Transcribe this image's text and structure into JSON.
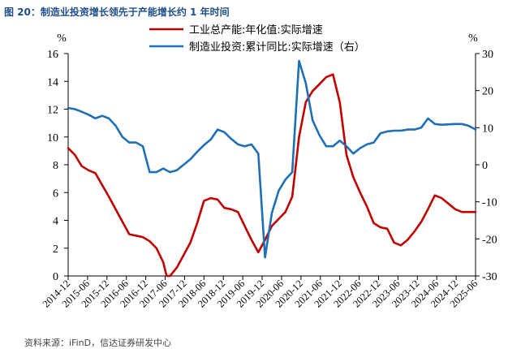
{
  "title": "图 20：制造业投资增长领先于产能增长约 1 年时间",
  "source": "资料来源：iFinD，信达证券研发中心",
  "chart_data": {
    "type": "line",
    "left_axis": {
      "unit": "%",
      "ylim": [
        0,
        16
      ],
      "ticks": [
        0,
        2,
        4,
        6,
        8,
        10,
        12,
        14,
        16
      ]
    },
    "right_axis": {
      "unit": "%",
      "ylim": [
        -30,
        30
      ],
      "ticks": [
        -30,
        -20,
        -10,
        0,
        10,
        20,
        30
      ]
    },
    "x_ticks": [
      "2014-12",
      "2015-06",
      "2015-12",
      "2016-06",
      "2016-12",
      "2017-06",
      "2017-12",
      "2018-06",
      "2018-12",
      "2019-06",
      "2019-12",
      "2020-06",
      "2020-12",
      "2021-06",
      "2021-12",
      "2022-06",
      "2022-12",
      "2023-06",
      "2023-12",
      "2024-06",
      "2024-12",
      "2025-06"
    ],
    "legend_position": "top",
    "series": [
      {
        "name": "工业总产能:年化值:实际增速",
        "axis": "left",
        "color": "#c00000",
        "points": [
          [
            0,
            9.2
          ],
          [
            1,
            8.7
          ],
          [
            2,
            7.9
          ],
          [
            3,
            7.6
          ],
          [
            4,
            7.4
          ],
          [
            6,
            5.7
          ],
          [
            8,
            3.9
          ],
          [
            9,
            3.0
          ],
          [
            11,
            2.8
          ],
          [
            12,
            2.5
          ],
          [
            13,
            2.0
          ],
          [
            14,
            1.0
          ],
          [
            14.5,
            0.0
          ],
          [
            15,
            0.0
          ],
          [
            16,
            0.6
          ],
          [
            18,
            2.4
          ],
          [
            19,
            3.8
          ],
          [
            20,
            5.4
          ],
          [
            21,
            5.6
          ],
          [
            22,
            5.5
          ],
          [
            23,
            4.9
          ],
          [
            24,
            4.8
          ],
          [
            25,
            4.6
          ],
          [
            26,
            3.6
          ],
          [
            27,
            2.6
          ],
          [
            28,
            1.7
          ],
          [
            29,
            2.6
          ],
          [
            30,
            3.6
          ],
          [
            32,
            4.6
          ],
          [
            33,
            5.7
          ],
          [
            34,
            10.0
          ],
          [
            35,
            12.5
          ],
          [
            36,
            13.3
          ],
          [
            37,
            13.8
          ],
          [
            38,
            14.3
          ],
          [
            39,
            14.5
          ],
          [
            40,
            12.5
          ],
          [
            41,
            8.7
          ],
          [
            42,
            7.1
          ],
          [
            43,
            6.0
          ],
          [
            44,
            5.0
          ],
          [
            45,
            3.8
          ],
          [
            46,
            3.5
          ],
          [
            47,
            3.4
          ],
          [
            48,
            2.4
          ],
          [
            49,
            2.2
          ],
          [
            50,
            2.6
          ],
          [
            51,
            3.2
          ],
          [
            52,
            3.9
          ],
          [
            53,
            4.8
          ],
          [
            54,
            5.8
          ],
          [
            55,
            5.6
          ],
          [
            56,
            5.2
          ],
          [
            57,
            4.8
          ],
          [
            58,
            4.6
          ],
          [
            59,
            4.6
          ],
          [
            60,
            4.6
          ]
        ]
      },
      {
        "name": "制造业投资:累计同比:实际增速（右）",
        "axis": "right",
        "color": "#1f6fb5",
        "points": [
          [
            0,
            15.3
          ],
          [
            1,
            15.0
          ],
          [
            2,
            14.3
          ],
          [
            3,
            13.5
          ],
          [
            4,
            12.5
          ],
          [
            5,
            13.2
          ],
          [
            6,
            12.5
          ],
          [
            7,
            10.5
          ],
          [
            8,
            7.5
          ],
          [
            9,
            6.0
          ],
          [
            10,
            6.0
          ],
          [
            11,
            5.0
          ],
          [
            12,
            -2.0
          ],
          [
            13,
            -2.0
          ],
          [
            14,
            -1.0
          ],
          [
            15,
            -2.0
          ],
          [
            16,
            -1.5
          ],
          [
            17,
            0.0
          ],
          [
            18,
            1.5
          ],
          [
            19,
            3.5
          ],
          [
            20,
            5.3
          ],
          [
            21,
            6.8
          ],
          [
            22,
            9.5
          ],
          [
            23,
            8.8
          ],
          [
            24,
            7.0
          ],
          [
            25,
            5.5
          ],
          [
            26,
            5.0
          ],
          [
            27,
            5.5
          ],
          [
            28,
            3.0
          ],
          [
            29,
            -25.0
          ],
          [
            30,
            -13.0
          ],
          [
            31,
            -7.0
          ],
          [
            32,
            -4.0
          ],
          [
            33,
            -2.0
          ],
          [
            34,
            28.0
          ],
          [
            35,
            22.0
          ],
          [
            36,
            12.0
          ],
          [
            37,
            8.0
          ],
          [
            38,
            5.0
          ],
          [
            39,
            5.0
          ],
          [
            40,
            6.5
          ],
          [
            41,
            5.0
          ],
          [
            42,
            3.0
          ],
          [
            43,
            4.5
          ],
          [
            44,
            5.5
          ],
          [
            45,
            6.0
          ],
          [
            46,
            8.5
          ],
          [
            47,
            9.0
          ],
          [
            48,
            9.2
          ],
          [
            49,
            9.2
          ],
          [
            50,
            9.5
          ],
          [
            51,
            9.5
          ],
          [
            52,
            10.0
          ],
          [
            53,
            12.5
          ],
          [
            54,
            11.0
          ],
          [
            55,
            10.8
          ],
          [
            56,
            10.9
          ],
          [
            57,
            11.0
          ],
          [
            58,
            11.0
          ],
          [
            59,
            10.5
          ],
          [
            60,
            9.5
          ]
        ]
      }
    ]
  }
}
